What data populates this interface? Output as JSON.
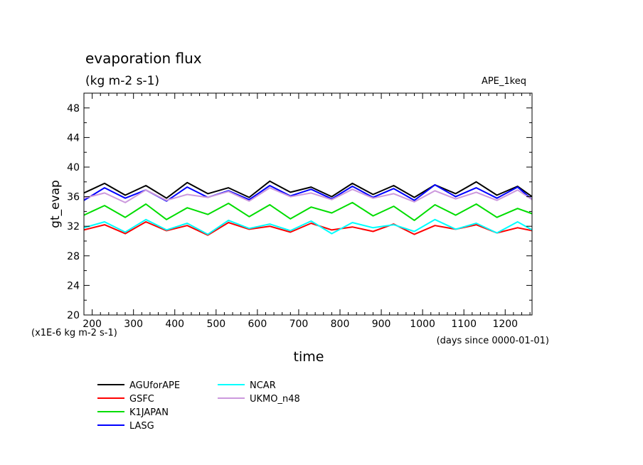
{
  "chart_data": {
    "type": "line",
    "title": "evaporation flux",
    "subtitle": "(kg m-2 s-1)",
    "experiment": "APE_1keq",
    "xlabel": "time",
    "ylabel": "gt_evap",
    "x_unit_note": "(days since 0000-01-01)",
    "y_unit_note": "(x1E-6 kg m-2 s-1)",
    "xlim": [
      180,
      1265
    ],
    "ylim": [
      20,
      50
    ],
    "x_ticks": [
      200,
      300,
      400,
      500,
      600,
      700,
      800,
      900,
      1000,
      1100,
      1200
    ],
    "x_tick_labels": [
      "200",
      "300",
      "400",
      "500",
      "600",
      "700",
      "800",
      "900",
      "1000",
      "1100",
      "1200"
    ],
    "y_ticks": [
      20,
      24,
      28,
      32,
      36,
      40,
      44,
      48
    ],
    "y_tick_labels": [
      "20",
      "24",
      "28",
      "32",
      "36",
      "40",
      "44",
      "48"
    ],
    "legend_position": "bottom",
    "grid": false,
    "x": [
      180,
      230,
      280,
      330,
      380,
      430,
      480,
      530,
      580,
      630,
      680,
      730,
      780,
      830,
      880,
      930,
      980,
      1030,
      1080,
      1130,
      1180,
      1230,
      1265
    ],
    "series": [
      {
        "name": "AGUforAPE",
        "color": "#000000",
        "values": [
          36.5,
          37.8,
          36.2,
          37.5,
          35.8,
          37.9,
          36.4,
          37.2,
          35.9,
          38.1,
          36.6,
          37.3,
          36.0,
          37.8,
          36.3,
          37.5,
          35.9,
          37.6,
          36.4,
          38.0,
          36.2,
          37.4,
          36.0
        ]
      },
      {
        "name": "GSFC",
        "color": "#ff0000",
        "values": [
          31.5,
          32.2,
          31.0,
          32.6,
          31.4,
          32.1,
          30.8,
          32.5,
          31.6,
          32.0,
          31.2,
          32.4,
          31.5,
          31.9,
          31.3,
          32.3,
          30.9,
          32.1,
          31.6,
          32.2,
          31.1,
          31.8,
          31.4
        ]
      },
      {
        "name": "K1JAPAN",
        "color": "#00dd00",
        "values": [
          33.5,
          34.8,
          33.2,
          35.0,
          32.9,
          34.5,
          33.6,
          35.1,
          33.3,
          34.9,
          33.0,
          34.6,
          33.8,
          35.2,
          33.4,
          34.7,
          32.8,
          34.9,
          33.5,
          35.0,
          33.2,
          34.4,
          33.7
        ]
      },
      {
        "name": "LASG",
        "color": "#0000ff",
        "values": [
          35.5,
          37.2,
          35.8,
          36.9,
          35.4,
          37.3,
          35.9,
          36.8,
          35.6,
          37.5,
          36.1,
          37.0,
          35.7,
          37.4,
          35.9,
          37.1,
          35.5,
          37.6,
          36.0,
          37.2,
          35.8,
          37.3,
          35.6
        ]
      },
      {
        "name": "NCAR",
        "color": "#00ffff",
        "values": [
          31.8,
          32.6,
          31.2,
          32.9,
          31.5,
          32.4,
          30.9,
          32.8,
          31.7,
          32.3,
          31.4,
          32.7,
          31.0,
          32.5,
          31.8,
          32.2,
          31.3,
          32.9,
          31.6,
          32.4,
          31.1,
          32.6,
          31.5
        ]
      },
      {
        "name": "UKMO_n48",
        "color": "#cc99dd",
        "values": [
          35.8,
          36.5,
          35.2,
          36.9,
          35.5,
          36.3,
          35.9,
          36.7,
          35.4,
          37.2,
          36.0,
          36.5,
          35.6,
          37.0,
          35.8,
          36.4,
          35.3,
          36.8,
          35.7,
          36.6,
          35.5,
          36.9,
          35.6
        ]
      }
    ]
  }
}
